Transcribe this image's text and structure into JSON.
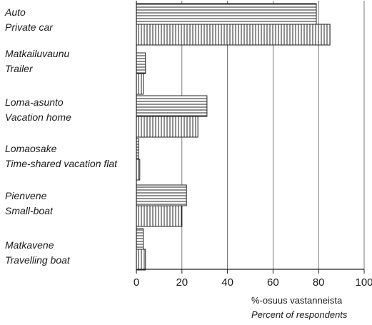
{
  "chart_data": {
    "type": "bar",
    "orientation": "horizontal",
    "categories": [
      {
        "fi": "Auto",
        "en": "Private car"
      },
      {
        "fi": "Matkailuvaunu",
        "en": "Trailer"
      },
      {
        "fi": "Loma-asunto",
        "en": "Vacation home"
      },
      {
        "fi": "Lomaosake",
        "en": "Time-shared vacation flat"
      },
      {
        "fi": "Pienvene",
        "en": "Small-boat"
      },
      {
        "fi": "Matkavene",
        "en": "Travelling boat"
      }
    ],
    "series": [
      {
        "pattern": "horizontal-hatch",
        "values": [
          79,
          4,
          31,
          1,
          22,
          3
        ]
      },
      {
        "pattern": "vertical-hatch",
        "values": [
          85,
          3,
          27,
          1.5,
          20,
          4
        ]
      }
    ],
    "xlabel_fi": "%-osuus vastanneista",
    "xlabel_en": "Percent of respondents",
    "xlim": [
      0,
      100
    ],
    "xticks": [
      "0",
      "20",
      "40",
      "60",
      "80",
      "100"
    ],
    "grid": "vertical",
    "colors": {
      "bar_stroke": "#222222",
      "grid": "#555555"
    }
  }
}
